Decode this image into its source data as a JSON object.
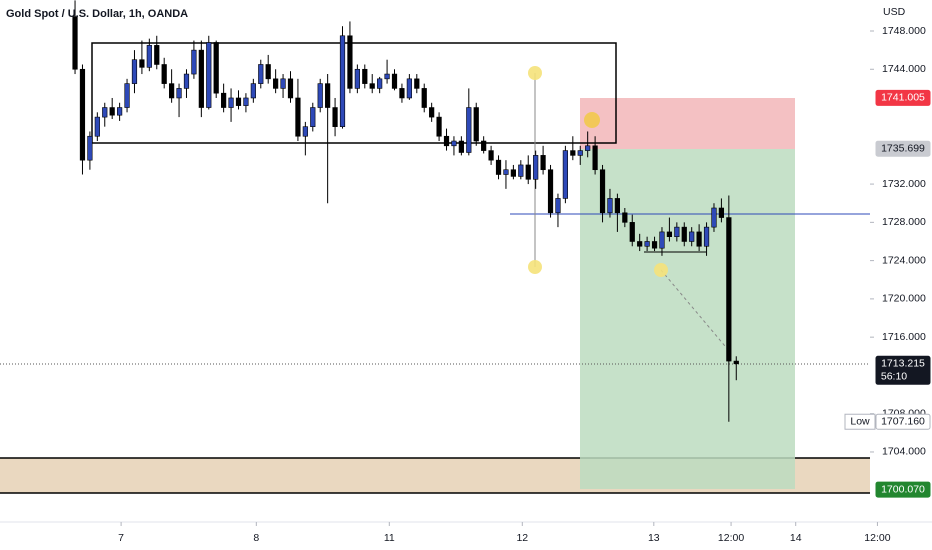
{
  "chart_data": {
    "type": "candlestick",
    "title": "Gold Spot / U.S. Dollar, 1h, OANDA",
    "currency": "USD",
    "up_color": "#2e49b8",
    "down_color": "#000000",
    "ylim": [
      1696.68,
      1751.24
    ],
    "yticks": [
      {
        "value": 1748,
        "label": "1748.000"
      },
      {
        "value": 1744,
        "label": "1744.000"
      },
      {
        "value": 1732,
        "label": "1732.000"
      },
      {
        "value": 1728,
        "label": "1728.000"
      },
      {
        "value": 1724,
        "label": "1724.000"
      },
      {
        "value": 1720,
        "label": "1720.000"
      },
      {
        "value": 1716,
        "label": "1716.000"
      },
      {
        "value": 1708,
        "label": "1708.000"
      },
      {
        "value": 1704,
        "label": "1704.000"
      }
    ],
    "xlim": [
      -10.1,
      107
    ],
    "xticks": [
      {
        "value": 6.2,
        "label": "7"
      },
      {
        "value": 24.4,
        "label": "8"
      },
      {
        "value": 42.3,
        "label": "11"
      },
      {
        "value": 60.2,
        "label": "12"
      },
      {
        "value": 77.9,
        "label": "13"
      },
      {
        "value": 88.3,
        "label": "12:00"
      },
      {
        "value": 97,
        "label": "14"
      },
      {
        "value": 108,
        "label": "12:00"
      }
    ],
    "price_tags": [
      {
        "value": 1741.005,
        "label": "1741.005",
        "bg": "#f23645",
        "fg": "#ffffff"
      },
      {
        "value": 1735.699,
        "label": "1735.699",
        "bg": "#c9cbd1",
        "fg": "#131722"
      },
      {
        "value": 1713.215,
        "label": "1713.215",
        "bg": "#131722",
        "fg": "#ffffff",
        "countdown": "56:10"
      },
      {
        "value": 1707.16,
        "label": "1707.160",
        "bg": "#ffffff",
        "fg": "#131722",
        "prefix": "Low"
      },
      {
        "value": 1700.07,
        "label": "1700.070",
        "bg": "#22862f",
        "fg": "#ffffff"
      }
    ],
    "ohlc": [
      [
        1749.5,
        1751.2,
        1743.5,
        1744
      ],
      [
        1744,
        1744.5,
        1733,
        1734.5
      ],
      [
        1734.5,
        1737.5,
        1733.5,
        1737
      ],
      [
        1737,
        1739.5,
        1736.5,
        1739
      ],
      [
        1739,
        1740.5,
        1738,
        1740
      ],
      [
        1740,
        1741,
        1738.8,
        1739.2
      ],
      [
        1739.2,
        1740.5,
        1738.6,
        1740
      ],
      [
        1740,
        1743,
        1739.5,
        1742.5
      ],
      [
        1742.5,
        1746,
        1741.5,
        1745
      ],
      [
        1745,
        1747,
        1743.5,
        1744.2
      ],
      [
        1744.2,
        1747.2,
        1743.8,
        1746.5
      ],
      [
        1746.5,
        1747.5,
        1744,
        1744.5
      ],
      [
        1744.5,
        1745.2,
        1742,
        1742.5
      ],
      [
        1742.5,
        1744,
        1740.5,
        1741
      ],
      [
        1741,
        1742.5,
        1739,
        1742
      ],
      [
        1742,
        1744,
        1741,
        1743.5
      ],
      [
        1743.5,
        1747,
        1743,
        1746
      ],
      [
        1746,
        1747,
        1739,
        1740
      ],
      [
        1740,
        1747.5,
        1739.8,
        1746.8
      ],
      [
        1746.8,
        1747,
        1741,
        1741.5
      ],
      [
        1741.5,
        1742.5,
        1739.5,
        1740
      ],
      [
        1740,
        1742,
        1738.5,
        1741
      ],
      [
        1741,
        1741.8,
        1739.8,
        1740.2
      ],
      [
        1740.2,
        1741.5,
        1739.5,
        1741
      ],
      [
        1741,
        1743,
        1740.5,
        1742.5
      ],
      [
        1742.5,
        1745,
        1742,
        1744.5
      ],
      [
        1744.5,
        1745.5,
        1742.5,
        1743
      ],
      [
        1743,
        1744,
        1741.5,
        1742
      ],
      [
        1742,
        1743.5,
        1741,
        1743
      ],
      [
        1743,
        1743.8,
        1740.5,
        1741
      ],
      [
        1741,
        1743,
        1736.5,
        1737
      ],
      [
        1737,
        1738.5,
        1735,
        1738
      ],
      [
        1738,
        1740.5,
        1737.5,
        1740
      ],
      [
        1740,
        1743,
        1739.5,
        1742.5
      ],
      [
        1742.5,
        1743.5,
        1730,
        1740
      ],
      [
        1740,
        1741,
        1737,
        1738
      ],
      [
        1738,
        1748.5,
        1737.8,
        1747.5
      ],
      [
        1747.5,
        1749,
        1741.5,
        1742
      ],
      [
        1742,
        1744.5,
        1741.5,
        1744
      ],
      [
        1744,
        1744.5,
        1742,
        1742.5
      ],
      [
        1742.5,
        1743.5,
        1741.5,
        1742
      ],
      [
        1742,
        1743.2,
        1741.5,
        1743
      ],
      [
        1743,
        1745,
        1742.5,
        1743.5
      ],
      [
        1743.5,
        1744,
        1741.8,
        1742
      ],
      [
        1742,
        1742.5,
        1740.5,
        1741
      ],
      [
        1741,
        1743.5,
        1740.8,
        1743
      ],
      [
        1743,
        1743.5,
        1741.5,
        1742
      ],
      [
        1742,
        1742.5,
        1739.5,
        1740
      ],
      [
        1740,
        1740.5,
        1738.5,
        1739
      ],
      [
        1739,
        1739.5,
        1736.5,
        1737
      ],
      [
        1737,
        1737.8,
        1735.5,
        1736
      ],
      [
        1736,
        1737,
        1735,
        1736.5
      ],
      [
        1736.5,
        1737,
        1735,
        1735.3
      ],
      [
        1735.3,
        1742,
        1735,
        1740
      ],
      [
        1740,
        1740.5,
        1736,
        1736.5
      ],
      [
        1736.5,
        1737,
        1735.2,
        1735.5
      ],
      [
        1735.5,
        1736,
        1734,
        1734.5
      ],
      [
        1734.5,
        1735,
        1732.5,
        1733
      ],
      [
        1733,
        1734.5,
        1731.5,
        1733.5
      ],
      [
        1733.5,
        1734,
        1732.5,
        1732.8
      ],
      [
        1732.8,
        1734.5,
        1732.5,
        1734
      ],
      [
        1734,
        1735,
        1732,
        1732.5
      ],
      [
        1732.5,
        1735.5,
        1731.5,
        1735
      ],
      [
        1735,
        1736,
        1733,
        1733.5
      ],
      [
        1733.5,
        1734,
        1728.5,
        1729
      ],
      [
        1729,
        1731,
        1727.5,
        1730.5
      ],
      [
        1730.5,
        1736,
        1730,
        1735.5
      ],
      [
        1735.5,
        1737,
        1734.5,
        1735
      ],
      [
        1735,
        1736,
        1734,
        1735.5
      ],
      [
        1735.5,
        1737.5,
        1734.8,
        1736
      ],
      [
        1736,
        1737,
        1733,
        1733.5
      ],
      [
        1733.5,
        1734,
        1728,
        1729
      ],
      [
        1729,
        1731.5,
        1728.5,
        1730.5
      ],
      [
        1730.5,
        1731,
        1727,
        1729
      ],
      [
        1729,
        1729.5,
        1727.5,
        1728
      ],
      [
        1728,
        1728.8,
        1725.5,
        1726
      ],
      [
        1726,
        1726.8,
        1725,
        1725.5
      ],
      [
        1725.5,
        1726.5,
        1725,
        1726
      ],
      [
        1726,
        1726.5,
        1725,
        1725.3
      ],
      [
        1725.3,
        1727.5,
        1724.5,
        1727
      ],
      [
        1727,
        1728.5,
        1726,
        1726.5
      ],
      [
        1726.5,
        1728,
        1726,
        1727.5
      ],
      [
        1727.5,
        1728,
        1725.5,
        1726
      ],
      [
        1726,
        1727.5,
        1725.5,
        1727
      ],
      [
        1727,
        1727.8,
        1725,
        1725.5
      ],
      [
        1725.5,
        1728,
        1724.5,
        1727.5
      ],
      [
        1727.5,
        1730,
        1727,
        1729.5
      ],
      [
        1729.5,
        1730.5,
        1728,
        1728.5
      ],
      [
        1728.5,
        1730.8,
        1707.16,
        1713.5
      ],
      [
        1713.5,
        1714,
        1711.5,
        1713.215
      ]
    ]
  }
}
